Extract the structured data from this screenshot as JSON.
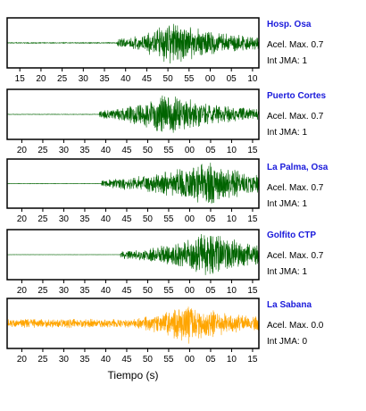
{
  "figure": {
    "xlabel": "Tiempo (s)",
    "accel_prefix": "Acel. Max.",
    "int_prefix": "Int JMA:"
  },
  "stations": [
    {
      "name": "Hosp. Osa",
      "accel": "0.7",
      "accel_label": "Acel. Max. 0.7",
      "int_jma": "1",
      "int_label": "Int JMA: 1"
    },
    {
      "name": "Puerto Cortes",
      "accel": "0.7",
      "accel_label": "Acel. Max. 0.7",
      "int_jma": "1",
      "int_label": "Int JMA: 1"
    },
    {
      "name": "La Palma, Osa",
      "accel": "0.7",
      "accel_label": "Acel. Max. 0.7",
      "int_jma": "1",
      "int_label": "Int JMA: 1"
    },
    {
      "name": "Golfito CTP",
      "accel": "0.7",
      "accel_label": "Acel. Max. 0.7",
      "int_jma": "1",
      "int_label": "Int JMA: 1"
    },
    {
      "name": "La Sabana",
      "accel": "0.0",
      "accel_label": "Acel. Max. 0.0",
      "int_jma": "0",
      "int_label": "Int JMA: 0"
    }
  ],
  "chart_data": [
    {
      "type": "line",
      "title": "Hosp. Osa",
      "color": "#006400",
      "xlim": [
        12,
        71.5
      ],
      "tick_labels": [
        "15",
        "20",
        "25",
        "30",
        "35",
        "40",
        "45",
        "50",
        "55",
        "00",
        "05",
        "10"
      ],
      "tick_start": 15,
      "tick_step": 5,
      "onset": 38,
      "peak": 51,
      "peak_amp": 1.0,
      "pre_amp": 0.02
    },
    {
      "name": "Puerto Cortes",
      "type": "line",
      "title": "Puerto Cortes",
      "color": "#006400",
      "xlim": [
        16.5,
        76.5
      ],
      "tick_labels": [
        "20",
        "25",
        "30",
        "35",
        "40",
        "45",
        "50",
        "55",
        "00",
        "05",
        "10",
        "15"
      ],
      "tick_start": 20,
      "tick_step": 5,
      "onset": 38.5,
      "peak": 55,
      "peak_amp": 0.95,
      "pre_amp": 0.01
    },
    {
      "type": "line",
      "title": "La Palma, Osa",
      "color": "#006400",
      "xlim": [
        16.5,
        76.5
      ],
      "tick_labels": [
        "20",
        "25",
        "30",
        "35",
        "40",
        "45",
        "50",
        "55",
        "00",
        "05",
        "10",
        "15"
      ],
      "tick_start": 20,
      "tick_step": 5,
      "onset": 39,
      "peak": 65,
      "peak_amp": 1.0,
      "pre_amp": 0.01
    },
    {
      "type": "line",
      "title": "Golfito CTP",
      "color": "#006400",
      "xlim": [
        16.5,
        76.5
      ],
      "tick_labels": [
        "20",
        "25",
        "30",
        "35",
        "40",
        "45",
        "50",
        "55",
        "00",
        "05",
        "10",
        "15"
      ],
      "tick_start": 20,
      "tick_step": 5,
      "onset": 43.5,
      "peak": 65,
      "peak_amp": 1.0,
      "pre_amp": 0.005
    },
    {
      "type": "line",
      "title": "La Sabana",
      "color": "#ffa500",
      "xlim": [
        16.5,
        76.5
      ],
      "tick_labels": [
        "20",
        "25",
        "30",
        "35",
        "40",
        "45",
        "50",
        "55",
        "00",
        "05",
        "10",
        "15"
      ],
      "tick_start": 20,
      "tick_step": 5,
      "onset": 43.5,
      "peak": 60,
      "peak_amp": 0.9,
      "pre_amp": 0.2
    }
  ]
}
